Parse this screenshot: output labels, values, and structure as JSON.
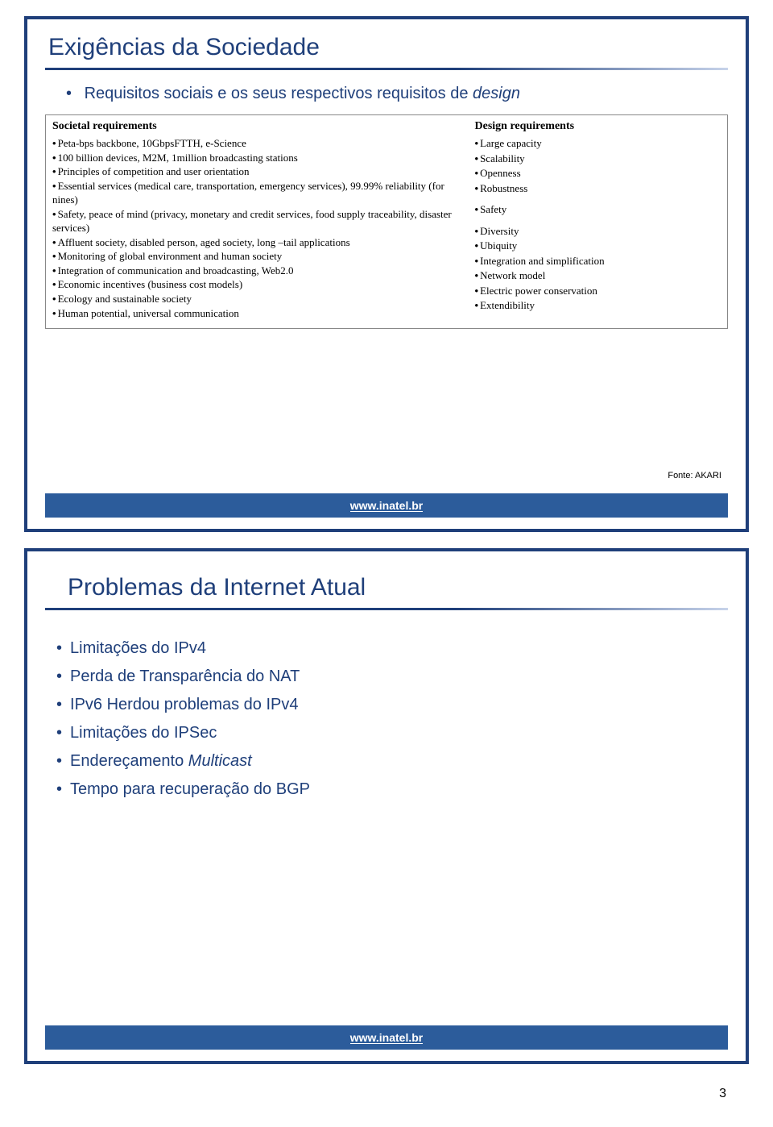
{
  "colors": {
    "slide_border": "#1f3f7a",
    "title_color": "#1f3f7a",
    "footer_bg": "#2c5c9b",
    "footer_text": "#ffffff",
    "body_text": "#000000"
  },
  "footer": {
    "url": "www.inatel.br"
  },
  "page_number": "3",
  "slide1": {
    "title": "Exigências da Sociedade",
    "subtitle_prefix": "Requisitos sociais e os seus respectivos requisitos de ",
    "subtitle_italic": "design",
    "fonte": "Fonte: AKARI",
    "left_header": "Societal requirements",
    "left_items": [
      "Peta-bps backbone, 10GbpsFTTH, e-Science",
      "100 billion devices, M2M, 1million broadcasting stations",
      "Principles of competition and user orientation",
      "Essential services (medical care, transportation, emergency services), 99.99% reliability (for nines)",
      "Safety, peace of mind (privacy, monetary and credit services, food supply traceability, disaster services)",
      "Affluent society, disabled person, aged society, long –tail applications",
      "Monitoring of global environment and human society",
      "Integration of communication and broadcasting, Web2.0",
      "Economic incentives (business cost models)",
      "Ecology and sustainable society",
      "Human potential, universal communication"
    ],
    "right_header": "Design requirements",
    "right_items": [
      "Large capacity",
      "Scalability",
      "Openness",
      "Robustness",
      "",
      "Safety",
      "",
      "Diversity",
      "Ubiquity",
      "Integration and simplification",
      "Network model",
      "Electric power conservation",
      "Extendibility"
    ]
  },
  "slide2": {
    "title": "Problemas da Internet Atual",
    "bullets": [
      {
        "text": "Limitações do IPv4"
      },
      {
        "text": "Perda de Transparência do NAT"
      },
      {
        "text": "IPv6 Herdou problemas do IPv4"
      },
      {
        "text": "Limitações do IPSec"
      },
      {
        "prefix": "Endereçamento ",
        "italic": "Multicast"
      },
      {
        "text": "Tempo para recuperação do BGP"
      }
    ]
  }
}
